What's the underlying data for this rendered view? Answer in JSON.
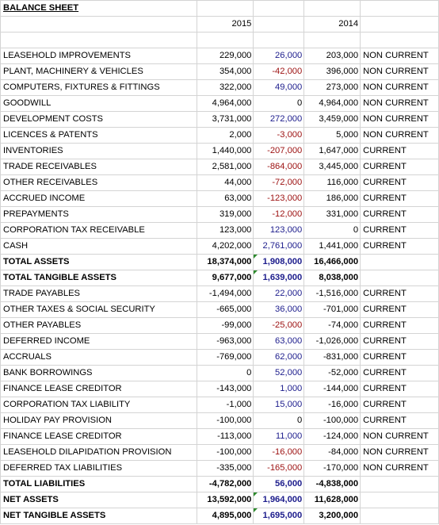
{
  "sheet": {
    "title": "BALANCE SHEET",
    "year_a": "2015",
    "year_b": "2014",
    "colors": {
      "positive_change": "#1c1c8c",
      "negative_change": "#9c1010",
      "note_flag": "#2e8b2e"
    },
    "rows": [
      {
        "label": "LEASEHOLD IMPROVEMENTS",
        "a": "229,000",
        "change": "26,000",
        "change_sign": "pos",
        "b": "203,000",
        "type": "NON CURRENT"
      },
      {
        "label": "PLANT, MACHINERY & VEHICLES",
        "a": "354,000",
        "change": "-42,000",
        "change_sign": "neg",
        "b": "396,000",
        "type": "NON CURRENT"
      },
      {
        "label": "COMPUTERS, FIXTURES & FITTINGS",
        "a": "322,000",
        "change": "49,000",
        "change_sign": "pos",
        "b": "273,000",
        "type": "NON CURRENT"
      },
      {
        "label": "GOODWILL",
        "a": "4,964,000",
        "change": "0",
        "change_sign": "zero",
        "b": "4,964,000",
        "type": "NON CURRENT"
      },
      {
        "label": "DEVELOPMENT COSTS",
        "a": "3,731,000",
        "change": "272,000",
        "change_sign": "pos",
        "b": "3,459,000",
        "type": "NON CURRENT"
      },
      {
        "label": "LICENCES & PATENTS",
        "a": "2,000",
        "change": "-3,000",
        "change_sign": "neg",
        "b": "5,000",
        "type": "NON CURRENT"
      },
      {
        "label": "INVENTORIES",
        "a": "1,440,000",
        "change": "-207,000",
        "change_sign": "neg",
        "b": "1,647,000",
        "type": "CURRENT"
      },
      {
        "label": "TRADE RECEIVABLES",
        "a": "2,581,000",
        "change": "-864,000",
        "change_sign": "neg",
        "b": "3,445,000",
        "type": "CURRENT"
      },
      {
        "label": "OTHER RECEIVABLES",
        "a": "44,000",
        "change": "-72,000",
        "change_sign": "neg",
        "b": "116,000",
        "type": "CURRENT"
      },
      {
        "label": "ACCRUED INCOME",
        "a": "63,000",
        "change": "-123,000",
        "change_sign": "neg",
        "b": "186,000",
        "type": "CURRENT"
      },
      {
        "label": "PREPAYMENTS",
        "a": "319,000",
        "change": "-12,000",
        "change_sign": "neg",
        "b": "331,000",
        "type": "CURRENT"
      },
      {
        "label": "CORPORATION TAX RECEIVABLE",
        "a": "123,000",
        "change": "123,000",
        "change_sign": "pos",
        "b": "0",
        "type": "CURRENT"
      },
      {
        "label": "CASH",
        "a": "4,202,000",
        "change": "2,761,000",
        "change_sign": "pos",
        "b": "1,441,000",
        "type": "CURRENT"
      },
      {
        "label": "TOTAL ASSETS",
        "a": "18,374,000",
        "change": "1,908,000",
        "change_sign": "pos",
        "b": "16,466,000",
        "type": "",
        "bold": true,
        "flag": true
      },
      {
        "label": "TOTAL TANGIBLE ASSETS",
        "a": "9,677,000",
        "change": "1,639,000",
        "change_sign": "pos",
        "b": "8,038,000",
        "type": "",
        "bold": true,
        "flag": true
      },
      {
        "label": "TRADE PAYABLES",
        "a": "-1,494,000",
        "change": "22,000",
        "change_sign": "pos",
        "b": "-1,516,000",
        "type": "CURRENT"
      },
      {
        "label": "OTHER TAXES & SOCIAL SECURITY",
        "a": "-665,000",
        "change": "36,000",
        "change_sign": "pos",
        "b": "-701,000",
        "type": "CURRENT"
      },
      {
        "label": "OTHER PAYABLES",
        "a": "-99,000",
        "change": "-25,000",
        "change_sign": "neg",
        "b": "-74,000",
        "type": "CURRENT"
      },
      {
        "label": "DEFERRED INCOME",
        "a": "-963,000",
        "change": "63,000",
        "change_sign": "pos",
        "b": "-1,026,000",
        "type": "CURRENT"
      },
      {
        "label": "ACCRUALS",
        "a": "-769,000",
        "change": "62,000",
        "change_sign": "pos",
        "b": "-831,000",
        "type": "CURRENT"
      },
      {
        "label": "BANK BORROWINGS",
        "a": "0",
        "change": "52,000",
        "change_sign": "pos",
        "b": "-52,000",
        "type": "CURRENT"
      },
      {
        "label": "FINANCE LEASE CREDITOR",
        "a": "-143,000",
        "change": "1,000",
        "change_sign": "pos",
        "b": "-144,000",
        "type": "CURRENT"
      },
      {
        "label": "CORPORATION TAX LIABILITY",
        "a": "-1,000",
        "change": "15,000",
        "change_sign": "pos",
        "b": "-16,000",
        "type": "CURRENT"
      },
      {
        "label": "HOLIDAY PAY PROVISION",
        "a": "-100,000",
        "change": "0",
        "change_sign": "zero",
        "b": "-100,000",
        "type": "CURRENT"
      },
      {
        "label": "FINANCE LEASE CREDITOR",
        "a": "-113,000",
        "change": "11,000",
        "change_sign": "pos",
        "b": "-124,000",
        "type": "NON CURRENT"
      },
      {
        "label": "LEASEHOLD DILAPIDATION PROVISION",
        "a": "-100,000",
        "change": "-16,000",
        "change_sign": "neg",
        "b": "-84,000",
        "type": "NON CURRENT"
      },
      {
        "label": "DEFERRED TAX LIABILITIES",
        "a": "-335,000",
        "change": "-165,000",
        "change_sign": "neg",
        "b": "-170,000",
        "type": "NON CURRENT"
      },
      {
        "label": "TOTAL LIABILITIES",
        "a": "-4,782,000",
        "change": "56,000",
        "change_sign": "pos",
        "b": "-4,838,000",
        "type": "",
        "bold": true
      },
      {
        "label": "NET ASSETS",
        "a": "13,592,000",
        "change": "1,964,000",
        "change_sign": "pos",
        "b": "11,628,000",
        "type": "",
        "bold": true,
        "flag": true
      },
      {
        "label": "NET TANGIBLE ASSETS",
        "a": "4,895,000",
        "change": "1,695,000",
        "change_sign": "pos",
        "b": "3,200,000",
        "type": "",
        "bold": true,
        "flag": true
      }
    ]
  }
}
